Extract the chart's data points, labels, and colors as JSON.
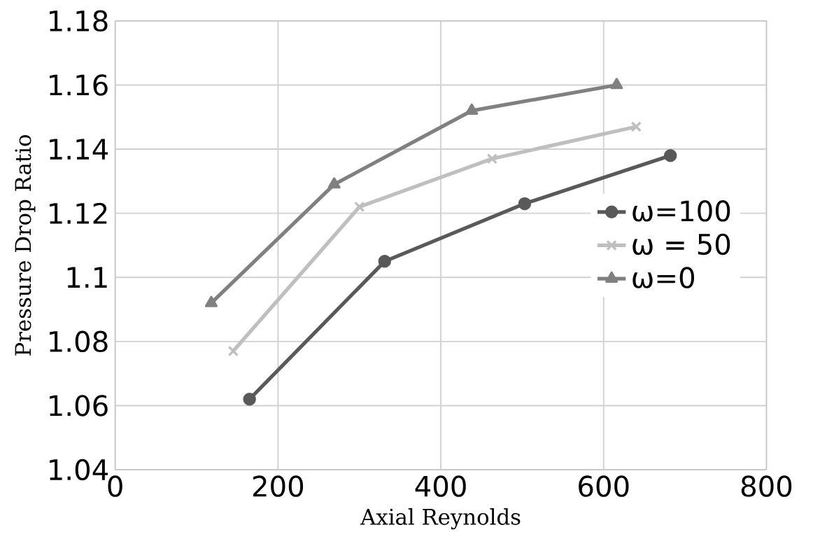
{
  "chart_data": {
    "type": "line",
    "xlabel": "Axial Reynolds",
    "ylabel": "Pressure Drop Ratio",
    "xlim": [
      0,
      800
    ],
    "ylim": [
      1.04,
      1.18
    ],
    "xticks": [
      0,
      200,
      400,
      600,
      800
    ],
    "yticks": [
      1.04,
      1.06,
      1.08,
      {
        "value": 1.1,
        "label": "1.1"
      },
      1.12,
      1.14,
      1.16,
      1.18
    ],
    "grid": true,
    "legend": "right",
    "series": [
      {
        "name": "ω=100",
        "color": "#595959",
        "marker": "circle",
        "x": [
          165,
          331,
          503,
          682
        ],
        "values": [
          1.062,
          1.105,
          1.123,
          1.138
        ]
      },
      {
        "name": "ω = 50",
        "color": "#bfbfbf",
        "marker": "cross",
        "x": [
          145,
          300,
          463,
          640
        ],
        "values": [
          1.077,
          1.122,
          1.137,
          1.147
        ]
      },
      {
        "name": "ω=0",
        "color": "#808080",
        "marker": "triangle",
        "x": [
          118,
          269,
          438,
          616
        ],
        "values": [
          1.092,
          1.129,
          1.152,
          1.16
        ]
      }
    ]
  }
}
